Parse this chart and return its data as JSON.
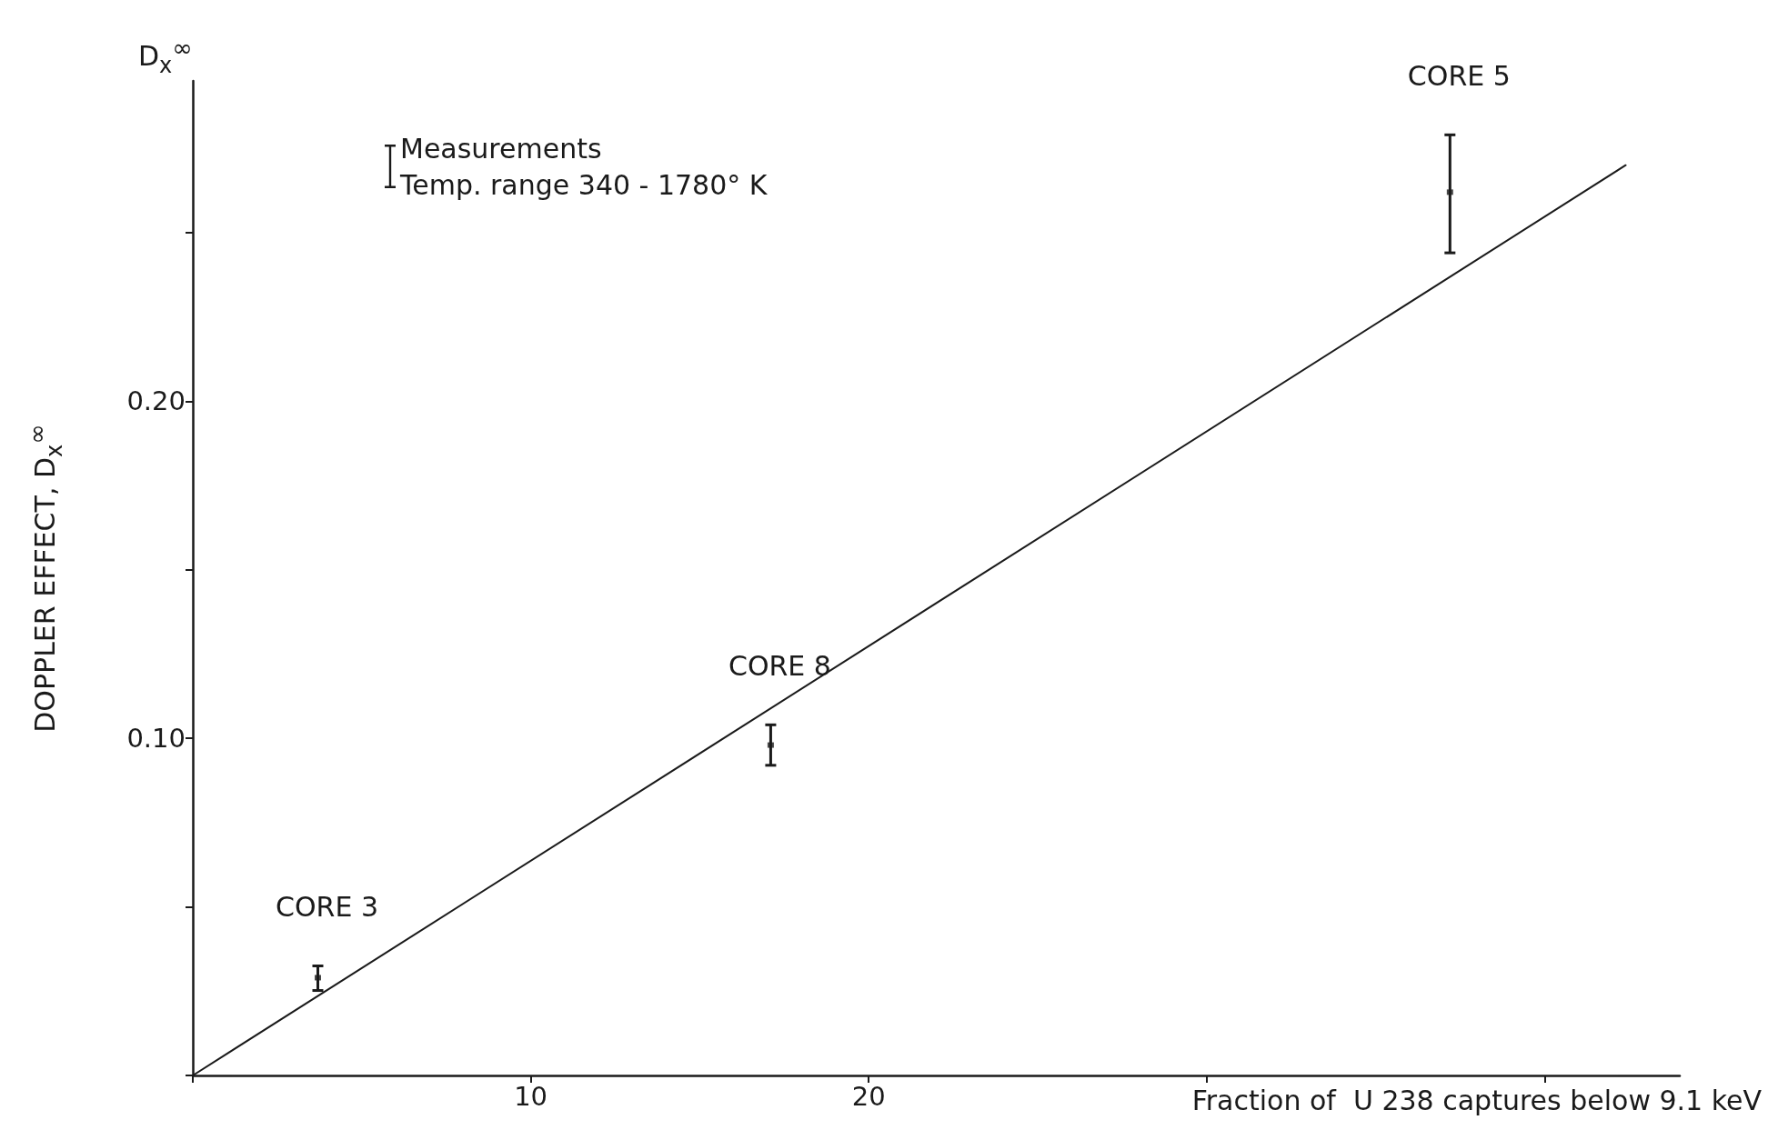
{
  "chart_data": {
    "type": "scatter",
    "xlabel": "Fraction of  U 238 captures below 9.1 keV",
    "ylabel": "DOPPLER EFFECT, D$_{x}$$^{∞}$",
    "xlim": [
      0,
      44
    ],
    "ylim": [
      0,
      0.295
    ],
    "xticks": [
      {
        "value": 0,
        "label": null
      },
      10,
      20,
      {
        "value": 30,
        "label": null
      },
      {
        "value": 40,
        "label": null
      }
    ],
    "yticks": [
      {
        "value": 0,
        "label": null
      },
      {
        "value": 0.05,
        "label": null
      },
      {
        "value": 0.1,
        "label": "0.10"
      },
      {
        "value": 0.15,
        "label": null
      },
      {
        "value": 0.2,
        "label": "0.20"
      },
      {
        "value": 0.25,
        "label": null
      }
    ],
    "series": [
      {
        "name": "Measurements\nTemp. range 340 - 1780° K",
        "color": "#1a1a1a",
        "x": [
          3.7,
          17.1,
          37.2
        ],
        "values": [
          0.029,
          0.098,
          0.262
        ],
        "errors": [
          [
            0.0252,
            0.0325
          ],
          [
            0.092,
            0.104
          ],
          [
            0.244,
            0.279
          ]
        ]
      },
      {
        "type": "line",
        "color": "#1a1a1a",
        "x": [
          0,
          42.4
        ],
        "values": [
          0,
          0.27
        ],
        "line_style": "solid",
        "marker": "none"
      }
    ],
    "annotations": [
      "D$_{x}$$^{∞}$",
      {
        "text": "CORE 3",
        "x": 3.7,
        "y": 0.0325
      },
      {
        "text": "CORE 8",
        "x": 17.1,
        "y": 0.104
      },
      {
        "text": "CORE 5",
        "x": 37.2,
        "y": 0.279
      }
    ],
    "legend": "top left",
    "grid": false
  }
}
